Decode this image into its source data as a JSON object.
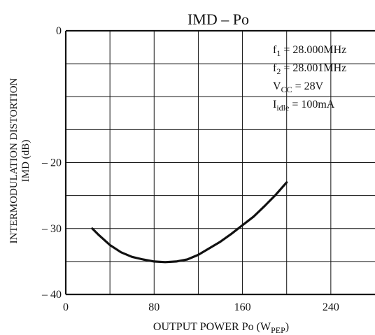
{
  "chart_data": {
    "type": "line",
    "title": "IMD  –  Po",
    "xlabel": {
      "prefix": "OUTPUT POWER   Po   (W",
      "subscript": "PEP",
      "suffix": ")"
    },
    "ylabel": {
      "line1": "INTERMODULATION DISTORTION",
      "line2": "IMD   (dB)"
    },
    "xlim": [
      0,
      280
    ],
    "ylim": [
      -40,
      0
    ],
    "x_grid_step": 40,
    "y_grid_step": 5,
    "grid": true,
    "x_tick_labels": [
      {
        "value": 0,
        "label": "0"
      },
      {
        "value": 80,
        "label": "80"
      },
      {
        "value": 160,
        "label": "160"
      },
      {
        "value": 240,
        "label": "240"
      }
    ],
    "y_tick_labels": [
      {
        "value": 0,
        "label": "0"
      },
      {
        "value": -20,
        "label": "– 20"
      },
      {
        "value": -30,
        "label": "– 30"
      },
      {
        "value": -40,
        "label": "– 40"
      }
    ],
    "conditions": [
      {
        "main": "f",
        "sub": "1",
        "value": " = 28.000MHz"
      },
      {
        "main": "f",
        "sub": "2",
        "value": " = 28.001MHz"
      },
      {
        "main": "V",
        "sub": "CC",
        "value": " = 28V"
      },
      {
        "main": "I",
        "sub": "idle",
        "value": " = 100mA"
      }
    ],
    "series": [
      {
        "x": [
          24,
          30,
          40,
          50,
          60,
          70,
          80,
          90,
          100,
          110,
          120,
          130,
          140,
          150,
          160,
          170,
          180,
          190,
          200
        ],
        "y": [
          -30.0,
          -31.0,
          -32.5,
          -33.6,
          -34.3,
          -34.7,
          -35.0,
          -35.1,
          -35.0,
          -34.7,
          -34.0,
          -33.0,
          -32.0,
          -30.8,
          -29.5,
          -28.2,
          -26.6,
          -24.9,
          -23.0
        ],
        "color": "#111111"
      }
    ]
  }
}
